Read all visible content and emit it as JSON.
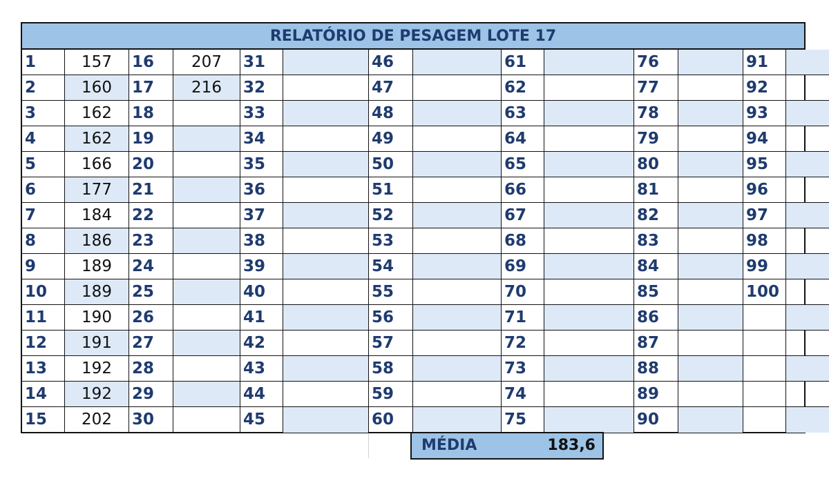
{
  "title": "RELATÓRIO DE PESAGEM LOTE 17",
  "rows_per_column": 15,
  "weights": {
    "1": "157",
    "2": "160",
    "3": "162",
    "4": "162",
    "5": "166",
    "6": "177",
    "7": "184",
    "8": "186",
    "9": "189",
    "10": "189",
    "11": "190",
    "12": "191",
    "13": "192",
    "14": "192",
    "15": "202",
    "16": "207",
    "17": "216"
  },
  "last_number": 100,
  "average": {
    "label": "MÉDIA",
    "value": "183,6"
  },
  "colors": {
    "header": "#9dc3e6",
    "shade": "#dde9f6",
    "number_text": "#1f3b6f"
  }
}
